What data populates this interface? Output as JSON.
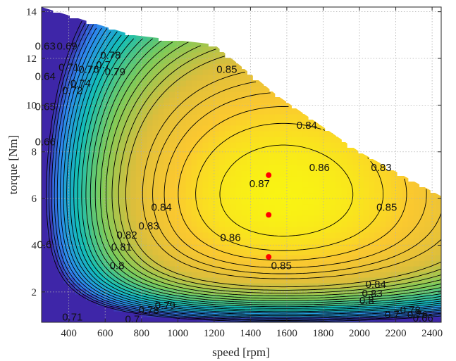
{
  "chart_data": {
    "type": "contour",
    "title": "",
    "xlabel": "speed [rpm]",
    "ylabel": "torque [Nm]",
    "xlim": [
      250,
      2450
    ],
    "ylim": [
      0.7,
      14.2
    ],
    "x_ticks": [
      "400",
      "600",
      "800",
      "1000",
      "1200",
      "1400",
      "1600",
      "1800",
      "2000",
      "2200",
      "2400"
    ],
    "y_ticks": [
      "2",
      "4",
      "6",
      "8",
      "10",
      "12",
      "14"
    ],
    "grid": true,
    "colormap": "parula",
    "level_range": [
      0.6,
      0.876
    ],
    "max_torque_envelope": [
      {
        "x": 250,
        "y": 14.2
      },
      {
        "x": 750,
        "y": 13.0
      },
      {
        "x": 1200,
        "y": 12.6
      },
      {
        "x": 1550,
        "y": 10.4
      },
      {
        "x": 2000,
        "y": 8.0
      },
      {
        "x": 2450,
        "y": 6.1
      }
    ],
    "contour_labels": [
      {
        "text": "0.63",
        "x": 270,
        "y": 12.5
      },
      {
        "text": "0.64",
        "x": 270,
        "y": 11.2
      },
      {
        "text": "0.65",
        "x": 270,
        "y": 9.9
      },
      {
        "text": "0.66",
        "x": 270,
        "y": 8.4
      },
      {
        "text": "0.69",
        "x": 390,
        "y": 12.5
      },
      {
        "text": "0.71",
        "x": 400,
        "y": 11.6
      },
      {
        "text": "0.72",
        "x": 420,
        "y": 10.6
      },
      {
        "text": "0.74",
        "x": 465,
        "y": 10.9
      },
      {
        "text": "0.76",
        "x": 510,
        "y": 11.5
      },
      {
        "text": "0.7",
        "x": 590,
        "y": 11.7
      },
      {
        "text": "0.78",
        "x": 630,
        "y": 12.1
      },
      {
        "text": "0.79",
        "x": 655,
        "y": 11.4
      },
      {
        "text": "0.85",
        "x": 1270,
        "y": 11.5
      },
      {
        "text": "0.84",
        "x": 1710,
        "y": 9.1
      },
      {
        "text": "0.83",
        "x": 2120,
        "y": 7.3
      },
      {
        "text": "0.86",
        "x": 1780,
        "y": 7.3
      },
      {
        "text": "0.85",
        "x": 2150,
        "y": 5.6
      },
      {
        "text": "0.87",
        "x": 1450,
        "y": 6.6
      },
      {
        "text": "0.84",
        "x": 910,
        "y": 5.6
      },
      {
        "text": "0.83",
        "x": 840,
        "y": 4.8
      },
      {
        "text": "0.86",
        "x": 1290,
        "y": 4.3
      },
      {
        "text": "0.82",
        "x": 720,
        "y": 4.4
      },
      {
        "text": "0.81",
        "x": 690,
        "y": 3.9
      },
      {
        "text": "0.8",
        "x": 665,
        "y": 3.1
      },
      {
        "text": "0.85",
        "x": 1570,
        "y": 3.1
      },
      {
        "text": "0.84",
        "x": 2090,
        "y": 2.3
      },
      {
        "text": "0.83",
        "x": 2070,
        "y": 1.9
      },
      {
        "text": "0.8",
        "x": 2040,
        "y": 1.6
      },
      {
        "text": "0.79",
        "x": 930,
        "y": 1.4
      },
      {
        "text": "0.78",
        "x": 840,
        "y": 1.2
      },
      {
        "text": "0.7",
        "x": 750,
        "y": 0.8
      },
      {
        "text": "0.71",
        "x": 420,
        "y": 0.9
      },
      {
        "text": "0.78",
        "x": 2280,
        "y": 1.2
      },
      {
        "text": "0.76",
        "x": 2320,
        "y": 1.0
      },
      {
        "text": "0.7",
        "x": 2180,
        "y": 1.0
      },
      {
        "text": "0.66",
        "x": 2350,
        "y": 0.85
      },
      {
        "text": "0.6",
        "x": 265,
        "y": 4.0
      }
    ],
    "points": [
      {
        "x": 1500,
        "y": 7.0
      },
      {
        "x": 1500,
        "y": 5.3
      },
      {
        "x": 1500,
        "y": 3.5
      }
    ],
    "colors": {
      "point": "#ff0000",
      "contour_line": "#000000",
      "grid": "#b0b0b0",
      "axis": "#262626"
    }
  }
}
